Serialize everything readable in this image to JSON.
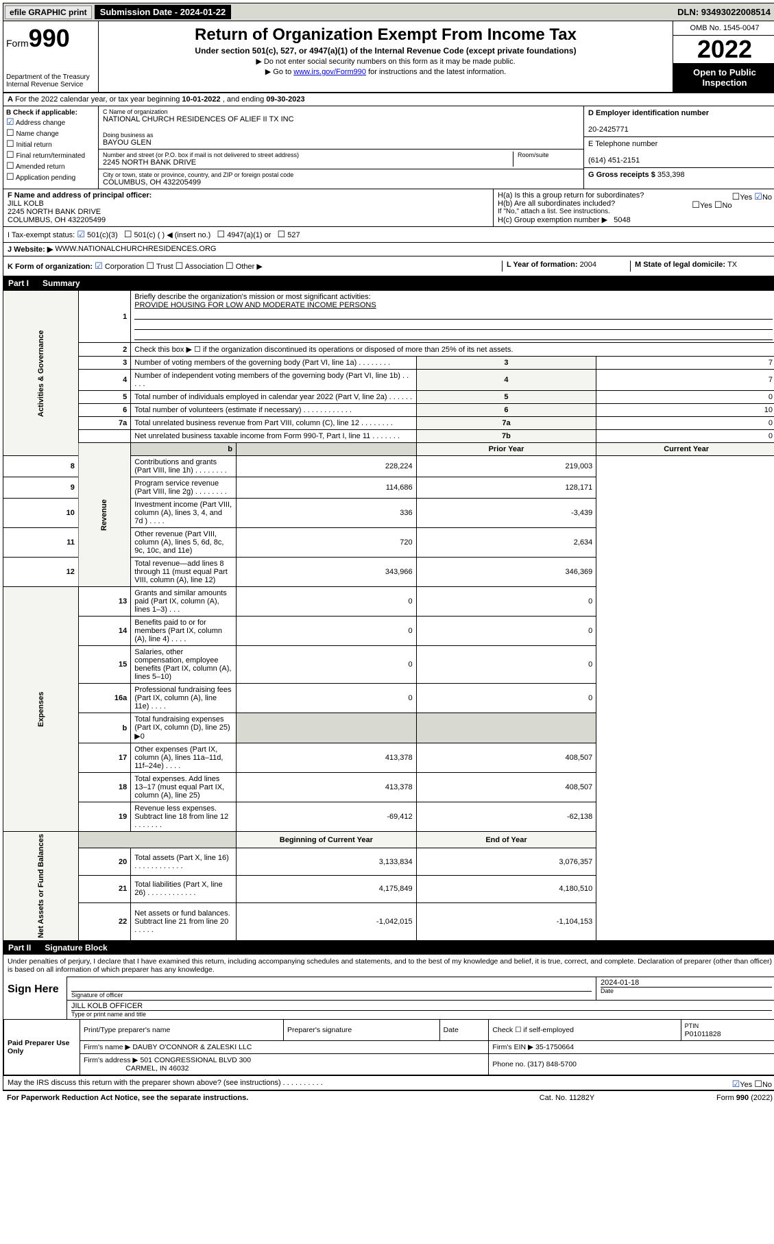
{
  "top": {
    "efile": "efile GRAPHIC print",
    "sub_date_label": "Submission Date - 2024-01-22",
    "dln": "DLN: 93493022008514"
  },
  "header": {
    "form_label": "Form",
    "form_no": "990",
    "title": "Return of Organization Exempt From Income Tax",
    "subtitle": "Under section 501(c), 527, or 4947(a)(1) of the Internal Revenue Code (except private foundations)",
    "note1": "▶ Do not enter social security numbers on this form as it may be made public.",
    "note2_pre": "▶ Go to ",
    "note2_link": "www.irs.gov/Form990",
    "note2_post": " for instructions and the latest information.",
    "dept": "Department of the Treasury\nInternal Revenue Service",
    "omb": "OMB No. 1545-0047",
    "year": "2022",
    "open": "Open to Public Inspection"
  },
  "a": {
    "text": "For the 2022 calendar year, or tax year beginning ",
    "begin": "10-01-2022",
    "mid": " , and ending ",
    "end": "09-30-2023"
  },
  "b": {
    "label": "B Check if applicable:",
    "opts": [
      "Address change",
      "Name change",
      "Initial return",
      "Final return/terminated",
      "Amended return",
      "Application pending"
    ],
    "checked_idx": 0
  },
  "c": {
    "name_label": "C Name of organization",
    "name": "NATIONAL CHURCH RESIDENCES OF ALIEF II TX INC",
    "dba_label": "Doing business as",
    "dba": "BAYOU GLEN",
    "street_label": "Number and street (or P.O. box if mail is not delivered to street address)",
    "street": "2245 NORTH BANK DRIVE",
    "room_label": "Room/suite",
    "city_label": "City or town, state or province, country, and ZIP or foreign postal code",
    "city": "COLUMBUS, OH  432205499"
  },
  "d": {
    "label": "D Employer identification number",
    "val": "20-2425771"
  },
  "e": {
    "label": "E Telephone number",
    "val": "(614) 451-2151"
  },
  "g": {
    "label": "G Gross receipts $ ",
    "val": "353,398"
  },
  "f": {
    "label": "F Name and address of principal officer:",
    "name": "JILL KOLB",
    "addr1": "2245 NORTH BANK DRIVE",
    "addr2": "COLUMBUS, OH  432205499"
  },
  "h": {
    "a": "H(a)  Is this a group return for subordinates?",
    "a_yes": "Yes",
    "a_no": "No",
    "b": "H(b)  Are all subordinates included?",
    "b_yes": "Yes",
    "b_no": "No",
    "b_note": "If \"No,\" attach a list. See instructions.",
    "c": "H(c)  Group exemption number ▶",
    "c_val": "5048"
  },
  "i": {
    "label": "I   Tax-exempt status:",
    "o1": "501(c)(3)",
    "o2": "501(c) (  ) ◀ (insert no.)",
    "o3": "4947(a)(1) or",
    "o4": "527"
  },
  "j": {
    "label": "J   Website: ▶",
    "val": "WWW.NATIONALCHURCHRESIDENCES.ORG"
  },
  "k": {
    "label": "K Form of organization:",
    "o1": "Corporation",
    "o2": "Trust",
    "o3": "Association",
    "o4": "Other ▶"
  },
  "l": {
    "label": "L Year of formation: ",
    "val": "2004"
  },
  "m": {
    "label": "M State of legal domicile: ",
    "val": "TX"
  },
  "part1": {
    "pt": "Part I",
    "title": "Summary"
  },
  "s": {
    "q1": "Briefly describe the organization's mission or most significant activities:",
    "mission": "PROVIDE HOUSING FOR LOW AND MODERATE INCOME PERSONS",
    "q2": "Check this box ▶ ☐  if the organization discontinued its operations or disposed of more than 25% of its net assets.",
    "rows_ag": [
      {
        "n": "3",
        "t": "Number of voting members of the governing body (Part VI, line 1a)   .    .    .    .    .    .    .    .",
        "box": "3",
        "v": "7"
      },
      {
        "n": "4",
        "t": "Number of independent voting members of the governing body (Part VI, line 1b)   .    .    .    .    .",
        "box": "4",
        "v": "7"
      },
      {
        "n": "5",
        "t": "Total number of individuals employed in calendar year 2022 (Part V, line 2a)   .    .    .    .    .    .",
        "box": "5",
        "v": "0"
      },
      {
        "n": "6",
        "t": "Total number of volunteers (estimate if necessary)    .    .    .    .    .    .    .    .    .    .    .    .",
        "box": "6",
        "v": "10"
      },
      {
        "n": "7a",
        "t": "Total unrelated business revenue from Part VIII, column (C), line 12   .    .    .    .    .    .    .    .",
        "box": "7a",
        "v": "0"
      },
      {
        "n": "",
        "t": "Net unrelated business taxable income from Form 990-T, Part I, line 11    .    .    .    .    .    .    .",
        "box": "7b",
        "v": "0"
      }
    ],
    "hdr_b": "b",
    "hdr_prior": "Prior Year",
    "hdr_curr": "Current Year",
    "rows_rev": [
      {
        "n": "8",
        "t": "Contributions and grants (Part VIII, line 1h)    .    .    .    .    .    .    .    .",
        "p": "228,224",
        "v": "219,003"
      },
      {
        "n": "9",
        "t": "Program service revenue (Part VIII, line 2g)    .    .    .    .    .    .    .    .",
        "p": "114,686",
        "v": "128,171"
      },
      {
        "n": "10",
        "t": "Investment income (Part VIII, column (A), lines 3, 4, and 7d )    .    .    .    .",
        "p": "336",
        "v": "-3,439"
      },
      {
        "n": "11",
        "t": "Other revenue (Part VIII, column (A), lines 5, 6d, 8c, 9c, 10c, and 11e)",
        "p": "720",
        "v": "2,634"
      },
      {
        "n": "12",
        "t": "Total revenue—add lines 8 through 11 (must equal Part VIII, column (A), line 12)",
        "p": "343,966",
        "v": "346,369"
      }
    ],
    "rows_exp": [
      {
        "n": "13",
        "t": "Grants and similar amounts paid (Part IX, column (A), lines 1–3)   .    .    .",
        "p": "0",
        "v": "0"
      },
      {
        "n": "14",
        "t": "Benefits paid to or for members (Part IX, column (A), line 4)   .    .    .    .",
        "p": "0",
        "v": "0"
      },
      {
        "n": "15",
        "t": "Salaries, other compensation, employee benefits (Part IX, column (A), lines 5–10)",
        "p": "0",
        "v": "0"
      },
      {
        "n": "16a",
        "t": "Professional fundraising fees (Part IX, column (A), line 11e)    .    .    .    .",
        "p": "0",
        "v": "0"
      },
      {
        "n": "b",
        "t": "Total fundraising expenses (Part IX, column (D), line 25) ▶0",
        "p": "",
        "v": ""
      },
      {
        "n": "17",
        "t": "Other expenses (Part IX, column (A), lines 11a–11d, 11f–24e)   .    .    .    .",
        "p": "413,378",
        "v": "408,507"
      },
      {
        "n": "18",
        "t": "Total expenses. Add lines 13–17 (must equal Part IX, column (A), line 25)",
        "p": "413,378",
        "v": "408,507"
      },
      {
        "n": "19",
        "t": "Revenue less expenses. Subtract line 18 from line 12   .    .    .    .    .    .    .",
        "p": "-69,412",
        "v": "-62,138"
      }
    ],
    "hdr_beg": "Beginning of Current Year",
    "hdr_end": "End of Year",
    "rows_na": [
      {
        "n": "20",
        "t": "Total assets (Part X, line 16)    .    .    .    .    .    .    .    .    .    .    .    .",
        "p": "3,133,834",
        "v": "3,076,357"
      },
      {
        "n": "21",
        "t": "Total liabilities (Part X, line 26)   .    .    .    .    .    .    .    .    .    .    .    .",
        "p": "4,175,849",
        "v": "4,180,510"
      },
      {
        "n": "22",
        "t": "Net assets or fund balances. Subtract line 21 from line 20   .    .    .    .    .",
        "p": "-1,042,015",
        "v": "-1,104,153"
      }
    ],
    "vert_ag": "Activities & Governance",
    "vert_rev": "Revenue",
    "vert_exp": "Expenses",
    "vert_na": "Net Assets or Fund Balances"
  },
  "part2": {
    "pt": "Part II",
    "title": "Signature Block"
  },
  "sig": {
    "decl": "Under penalties of perjury, I declare that I have examined this return, including accompanying schedules and statements, and to the best of my knowledge and belief, it is true, correct, and complete. Declaration of preparer (other than officer) is based on all information of which preparer has any knowledge.",
    "sign_here": "Sign Here",
    "sig_officer": "Signature of officer",
    "date_label": "Date",
    "date": "2024-01-18",
    "name_title": "JILL KOLB  OFFICER",
    "name_label": "Type or print name and title"
  },
  "prep": {
    "label": "Paid Preparer Use Only",
    "h1": "Print/Type preparer's name",
    "h2": "Preparer's signature",
    "h3": "Date",
    "h4_pre": "Check ☐ if self-employed",
    "h5": "PTIN",
    "ptin": "P01011828",
    "firm_name_l": "Firm's name   ▶",
    "firm_name": "DAUBY O'CONNOR & ZALESKI LLC",
    "firm_ein_l": "Firm's EIN ▶",
    "firm_ein": "35-1750664",
    "firm_addr_l": "Firm's address ▶",
    "firm_addr1": "501 CONGRESSIONAL BLVD 300",
    "firm_addr2": "CARMEL, IN  46032",
    "phone_l": "Phone no. ",
    "phone": "(317) 848-5700",
    "discuss": "May the IRS discuss this return with the preparer shown above? (see instructions)    .    .    .    .    .    .    .    .    .    .",
    "yes": "Yes",
    "no": "No"
  },
  "footer": {
    "pra": "For Paperwork Reduction Act Notice, see the separate instructions.",
    "cat": "Cat. No. 11282Y",
    "form": "Form 990 (2022)"
  }
}
